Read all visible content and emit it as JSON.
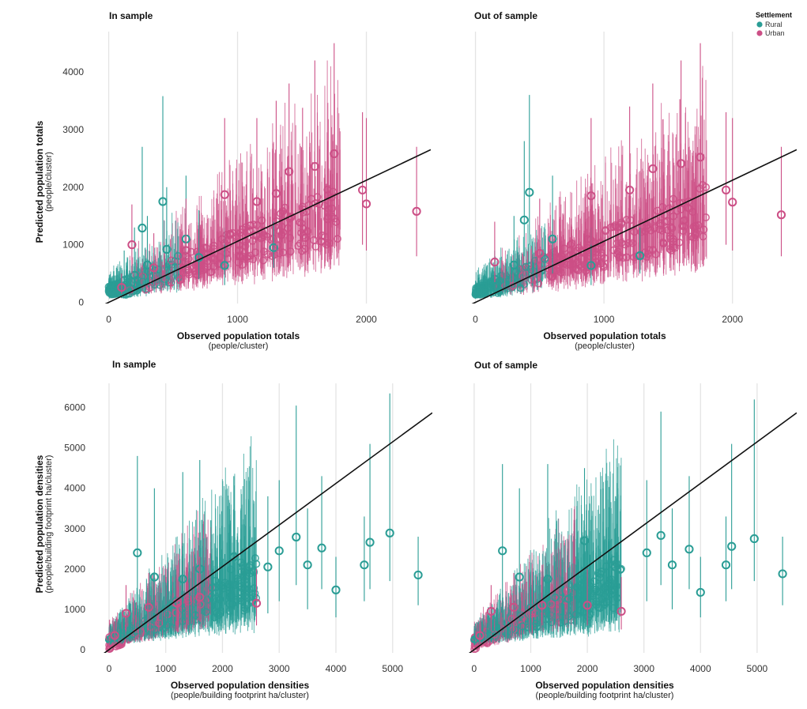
{
  "legend": {
    "title": "Settlement",
    "items": [
      {
        "label": "Rural",
        "color": "#2a9d95"
      },
      {
        "label": "Urban",
        "color": "#cc4f86"
      }
    ]
  },
  "chart_data": [
    {
      "type": "scatter",
      "panel": "top-left",
      "title": "In sample",
      "xlabel": "Observed population totals",
      "xlabel_sub": "(people/cluster)",
      "ylabel": "Predicted population totals",
      "ylabel_sub": "(people/cluster)",
      "xlim": [
        -120,
        2500
      ],
      "ylim": [
        -20,
        4700
      ],
      "xticks": [
        0,
        1000,
        2000
      ],
      "yticks": [
        0,
        1000,
        2000,
        3000,
        4000
      ],
      "reference_line": {
        "slope": 1.06,
        "intercept": 0
      },
      "series": [
        {
          "name": "Rural",
          "points": [
            {
              "x": 20,
              "y": 210,
              "lo": 100,
              "hi": 420
            },
            {
              "x": 60,
              "y": 300,
              "lo": 150,
              "hi": 600
            },
            {
              "x": 120,
              "y": 380,
              "lo": 180,
              "hi": 900
            },
            {
              "x": 200,
              "y": 470,
              "lo": 200,
              "hi": 1300
            },
            {
              "x": 260,
              "y": 1290,
              "lo": 700,
              "hi": 2700
            },
            {
              "x": 300,
              "y": 650,
              "lo": 300,
              "hi": 1500
            },
            {
              "x": 420,
              "y": 1750,
              "lo": 900,
              "hi": 3580
            },
            {
              "x": 450,
              "y": 920,
              "lo": 400,
              "hi": 2000
            },
            {
              "x": 600,
              "y": 1100,
              "lo": 500,
              "hi": 2200
            },
            {
              "x": 700,
              "y": 780,
              "lo": 400,
              "hi": 1600
            },
            {
              "x": 900,
              "y": 640,
              "lo": 300,
              "hi": 1300
            },
            {
              "x": 1280,
              "y": 950,
              "lo": 600,
              "hi": 1400
            }
          ]
        },
        {
          "name": "Urban",
          "points": [
            {
              "x": 100,
              "y": 260,
              "lo": 150,
              "hi": 500
            },
            {
              "x": 180,
              "y": 1000,
              "lo": 500,
              "hi": 1700
            },
            {
              "x": 350,
              "y": 600,
              "lo": 300,
              "hi": 1200
            },
            {
              "x": 600,
              "y": 900,
              "lo": 450,
              "hi": 1800
            },
            {
              "x": 900,
              "y": 1870,
              "lo": 1000,
              "hi": 3200
            },
            {
              "x": 1150,
              "y": 1750,
              "lo": 800,
              "hi": 3200
            },
            {
              "x": 1300,
              "y": 1890,
              "lo": 900,
              "hi": 3500
            },
            {
              "x": 1400,
              "y": 2270,
              "lo": 1200,
              "hi": 3800
            },
            {
              "x": 1600,
              "y": 2360,
              "lo": 1300,
              "hi": 4200
            },
            {
              "x": 1700,
              "y": 1450,
              "lo": 700,
              "hi": 2800
            },
            {
              "x": 1750,
              "y": 2580,
              "lo": 1400,
              "hi": 4500
            },
            {
              "x": 1970,
              "y": 1950,
              "lo": 1000,
              "hi": 3300
            },
            {
              "x": 2000,
              "y": 1710,
              "lo": 900,
              "hi": 3200
            },
            {
              "x": 2390,
              "y": 1580,
              "lo": 800,
              "hi": 2700
            }
          ]
        }
      ]
    },
    {
      "type": "scatter",
      "panel": "top-right",
      "title": "Out of sample",
      "xlabel": "Observed population totals",
      "xlabel_sub": "(people/cluster)",
      "ylabel": "",
      "ylabel_sub": "",
      "xlim": [
        -120,
        2500
      ],
      "ylim": [
        -20,
        4700
      ],
      "xticks": [
        0,
        1000,
        2000
      ],
      "yticks": [],
      "reference_line": {
        "slope": 1.06,
        "intercept": 0
      },
      "series": [
        {
          "name": "Rural",
          "points": [
            {
              "x": 20,
              "y": 200,
              "lo": 100,
              "hi": 400
            },
            {
              "x": 150,
              "y": 400,
              "lo": 180,
              "hi": 900
            },
            {
              "x": 300,
              "y": 650,
              "lo": 300,
              "hi": 1500
            },
            {
              "x": 380,
              "y": 1430,
              "lo": 800,
              "hi": 2800
            },
            {
              "x": 420,
              "y": 1910,
              "lo": 1000,
              "hi": 3600
            },
            {
              "x": 600,
              "y": 1100,
              "lo": 500,
              "hi": 2200
            },
            {
              "x": 900,
              "y": 640,
              "lo": 300,
              "hi": 1300
            },
            {
              "x": 1280,
              "y": 810,
              "lo": 500,
              "hi": 1300
            }
          ]
        },
        {
          "name": "Urban",
          "points": [
            {
              "x": 150,
              "y": 700,
              "lo": 350,
              "hi": 1400
            },
            {
              "x": 500,
              "y": 850,
              "lo": 400,
              "hi": 1800
            },
            {
              "x": 900,
              "y": 1850,
              "lo": 1000,
              "hi": 3200
            },
            {
              "x": 1200,
              "y": 1950,
              "lo": 1000,
              "hi": 3400
            },
            {
              "x": 1380,
              "y": 2320,
              "lo": 1200,
              "hi": 3800
            },
            {
              "x": 1600,
              "y": 2410,
              "lo": 1300,
              "hi": 4200
            },
            {
              "x": 1750,
              "y": 2520,
              "lo": 1400,
              "hi": 4500
            },
            {
              "x": 1950,
              "y": 1950,
              "lo": 1000,
              "hi": 3300
            },
            {
              "x": 2000,
              "y": 1740,
              "lo": 900,
              "hi": 3200
            },
            {
              "x": 2380,
              "y": 1520,
              "lo": 800,
              "hi": 2700
            }
          ]
        }
      ]
    },
    {
      "type": "scatter",
      "panel": "bottom-left",
      "title": "In sample",
      "xlabel": "Observed population densities",
      "xlabel_sub": "(people/building footprint ha/cluster)",
      "ylabel": "Predicted population densities",
      "ylabel_sub": "(people/building footprint ha/cluster)",
      "xlim": [
        -250,
        5700
      ],
      "ylim": [
        -80,
        6600
      ],
      "xticks": [
        0,
        1000,
        2000,
        3000,
        4000,
        5000
      ],
      "yticks": [
        0,
        1000,
        2000,
        3000,
        4000,
        5000,
        6000
      ],
      "reference_line": {
        "slope": 1.03,
        "intercept": 0
      },
      "series": [
        {
          "name": "Rural",
          "points": [
            {
              "x": 100,
              "y": 300,
              "lo": 150,
              "hi": 700
            },
            {
              "x": 500,
              "y": 2400,
              "lo": 800,
              "hi": 4800
            },
            {
              "x": 800,
              "y": 1800,
              "lo": 700,
              "hi": 4000
            },
            {
              "x": 1300,
              "y": 1750,
              "lo": 600,
              "hi": 4400
            },
            {
              "x": 1600,
              "y": 2000,
              "lo": 800,
              "hi": 4700
            },
            {
              "x": 2200,
              "y": 2300,
              "lo": 1000,
              "hi": 4300
            },
            {
              "x": 2800,
              "y": 2050,
              "lo": 900,
              "hi": 3800
            },
            {
              "x": 3000,
              "y": 2450,
              "lo": 1200,
              "hi": 4200
            },
            {
              "x": 3300,
              "y": 2790,
              "lo": 1600,
              "hi": 6050
            },
            {
              "x": 3500,
              "y": 2100,
              "lo": 1000,
              "hi": 3500
            },
            {
              "x": 3750,
              "y": 2520,
              "lo": 1500,
              "hi": 4300
            },
            {
              "x": 4000,
              "y": 1480,
              "lo": 800,
              "hi": 2300
            },
            {
              "x": 4500,
              "y": 2100,
              "lo": 1200,
              "hi": 3300
            },
            {
              "x": 4600,
              "y": 2660,
              "lo": 1500,
              "hi": 5100
            },
            {
              "x": 4950,
              "y": 2890,
              "lo": 1700,
              "hi": 6350
            },
            {
              "x": 5450,
              "y": 1850,
              "lo": 1100,
              "hi": 2800
            }
          ]
        },
        {
          "name": "Urban",
          "points": [
            {
              "x": 100,
              "y": 350,
              "lo": 180,
              "hi": 700
            },
            {
              "x": 300,
              "y": 900,
              "lo": 450,
              "hi": 1600
            },
            {
              "x": 700,
              "y": 1050,
              "lo": 500,
              "hi": 1900
            },
            {
              "x": 1200,
              "y": 1150,
              "lo": 600,
              "hi": 2100
            },
            {
              "x": 1600,
              "y": 1300,
              "lo": 700,
              "hi": 2300
            },
            {
              "x": 2600,
              "y": 1150,
              "lo": 600,
              "hi": 2000
            }
          ]
        }
      ]
    },
    {
      "type": "scatter",
      "panel": "bottom-right",
      "title": "Out of sample",
      "xlabel": "Observed population densities",
      "xlabel_sub": "(people/building footprint ha/cluster)",
      "ylabel": "",
      "ylabel_sub": "",
      "xlim": [
        -250,
        5700
      ],
      "ylim": [
        -80,
        6600
      ],
      "xticks": [
        0,
        1000,
        2000,
        3000,
        4000,
        5000
      ],
      "yticks": [],
      "reference_line": {
        "slope": 1.03,
        "intercept": 0
      },
      "series": [
        {
          "name": "Rural",
          "points": [
            {
              "x": 100,
              "y": 300,
              "lo": 150,
              "hi": 700
            },
            {
              "x": 500,
              "y": 2450,
              "lo": 800,
              "hi": 4600
            },
            {
              "x": 800,
              "y": 1800,
              "lo": 700,
              "hi": 4000
            },
            {
              "x": 1300,
              "y": 1750,
              "lo": 600,
              "hi": 4600
            },
            {
              "x": 1950,
              "y": 2700,
              "lo": 1200,
              "hi": 4500
            },
            {
              "x": 2500,
              "y": 2050,
              "lo": 900,
              "hi": 3800
            },
            {
              "x": 3050,
              "y": 2400,
              "lo": 1200,
              "hi": 4200
            },
            {
              "x": 3300,
              "y": 2830,
              "lo": 1600,
              "hi": 5900
            },
            {
              "x": 3500,
              "y": 2100,
              "lo": 1000,
              "hi": 3500
            },
            {
              "x": 3800,
              "y": 2490,
              "lo": 1500,
              "hi": 4300
            },
            {
              "x": 4000,
              "y": 1420,
              "lo": 800,
              "hi": 2300
            },
            {
              "x": 4450,
              "y": 2100,
              "lo": 1200,
              "hi": 3300
            },
            {
              "x": 4550,
              "y": 2560,
              "lo": 1500,
              "hi": 5100
            },
            {
              "x": 4950,
              "y": 2750,
              "lo": 1700,
              "hi": 6200
            },
            {
              "x": 5450,
              "y": 1880,
              "lo": 1100,
              "hi": 2800
            }
          ]
        },
        {
          "name": "Urban",
          "points": [
            {
              "x": 100,
              "y": 350,
              "lo": 180,
              "hi": 700
            },
            {
              "x": 300,
              "y": 950,
              "lo": 450,
              "hi": 1600
            },
            {
              "x": 700,
              "y": 1050,
              "lo": 500,
              "hi": 1900
            },
            {
              "x": 1200,
              "y": 1100,
              "lo": 600,
              "hi": 2100
            },
            {
              "x": 2000,
              "y": 1100,
              "lo": 600,
              "hi": 2000
            },
            {
              "x": 2600,
              "y": 950,
              "lo": 500,
              "hi": 1800
            }
          ]
        }
      ]
    }
  ]
}
